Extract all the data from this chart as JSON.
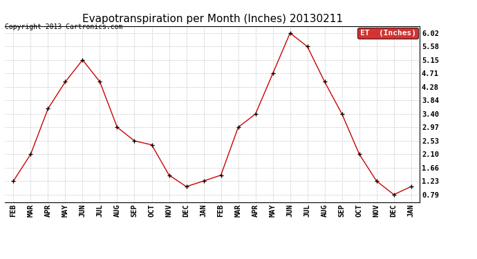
{
  "title": "Evapotranspiration per Month (Inches) 20130211",
  "copyright": "Copyright 2013 Cartronics.com",
  "legend_label": "ET  (Inches)",
  "x_labels": [
    "FEB",
    "MAR",
    "APR",
    "MAY",
    "JUN",
    "JUL",
    "AUG",
    "SEP",
    "OCT",
    "NOV",
    "DEC",
    "JAN",
    "FEB",
    "MAR",
    "APR",
    "MAY",
    "JUN",
    "JUL",
    "AUG",
    "SEP",
    "OCT",
    "NOV",
    "DEC",
    "JAN"
  ],
  "y_values": [
    1.23,
    2.1,
    3.57,
    4.44,
    5.15,
    4.44,
    2.97,
    2.53,
    2.4,
    1.42,
    1.05,
    1.23,
    1.42,
    2.97,
    3.4,
    4.71,
    6.02,
    5.58,
    4.44,
    3.4,
    2.1,
    1.23,
    0.79,
    1.05
  ],
  "yticks": [
    0.79,
    1.23,
    1.66,
    2.1,
    2.53,
    2.97,
    3.4,
    3.84,
    4.28,
    4.71,
    5.15,
    5.58,
    6.02
  ],
  "line_color": "#cc0000",
  "marker_color": "#000000",
  "background_color": "#ffffff",
  "grid_color": "#c8c8c8",
  "legend_bg": "#cc0000",
  "legend_text_color": "#ffffff",
  "title_fontsize": 11,
  "copyright_fontsize": 7,
  "tick_fontsize": 7.5,
  "legend_fontsize": 8
}
